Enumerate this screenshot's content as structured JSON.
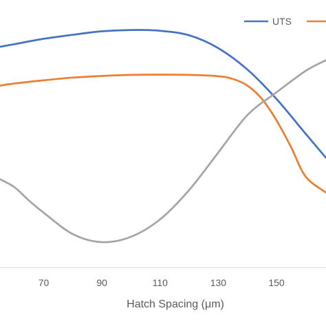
{
  "chart_data": {
    "type": "line",
    "xlabel": "Hatch Spacing (μm)",
    "ylabel": "",
    "x_ticks": [
      70,
      90,
      110,
      130,
      150
    ],
    "xlim": [
      55,
      167
    ],
    "ylim": [
      0,
      100
    ],
    "grid": false,
    "legend_position": "top-right",
    "series": [
      {
        "name": "UTS",
        "color": "#4472C4",
        "x": [
          55,
          60,
          70,
          80,
          90,
          100,
          110,
          120,
          130,
          140,
          150,
          160,
          167
        ],
        "y": [
          82.5,
          83.5,
          85.5,
          87,
          88.3,
          88.8,
          88.5,
          86.8,
          82,
          74,
          63,
          50,
          41
        ]
      },
      {
        "name": "",
        "color": "#ED7D31",
        "x": [
          55,
          60,
          70,
          80,
          90,
          100,
          110,
          120,
          130,
          135,
          140,
          145,
          150,
          155,
          160,
          167
        ],
        "y": [
          68,
          68.8,
          70,
          71,
          71.6,
          72,
          72.1,
          72,
          71.5,
          70.5,
          68,
          63,
          55,
          45,
          34,
          28
        ]
      },
      {
        "name": "",
        "color": "#A5A5A5",
        "x": [
          55,
          60,
          65,
          70,
          80,
          90,
          100,
          110,
          120,
          130,
          140,
          150,
          160,
          167
        ],
        "y": [
          33,
          30,
          25,
          20.5,
          12.5,
          9.5,
          11.5,
          18,
          29,
          43,
          57,
          65.5,
          73.5,
          77.5
        ]
      }
    ]
  }
}
